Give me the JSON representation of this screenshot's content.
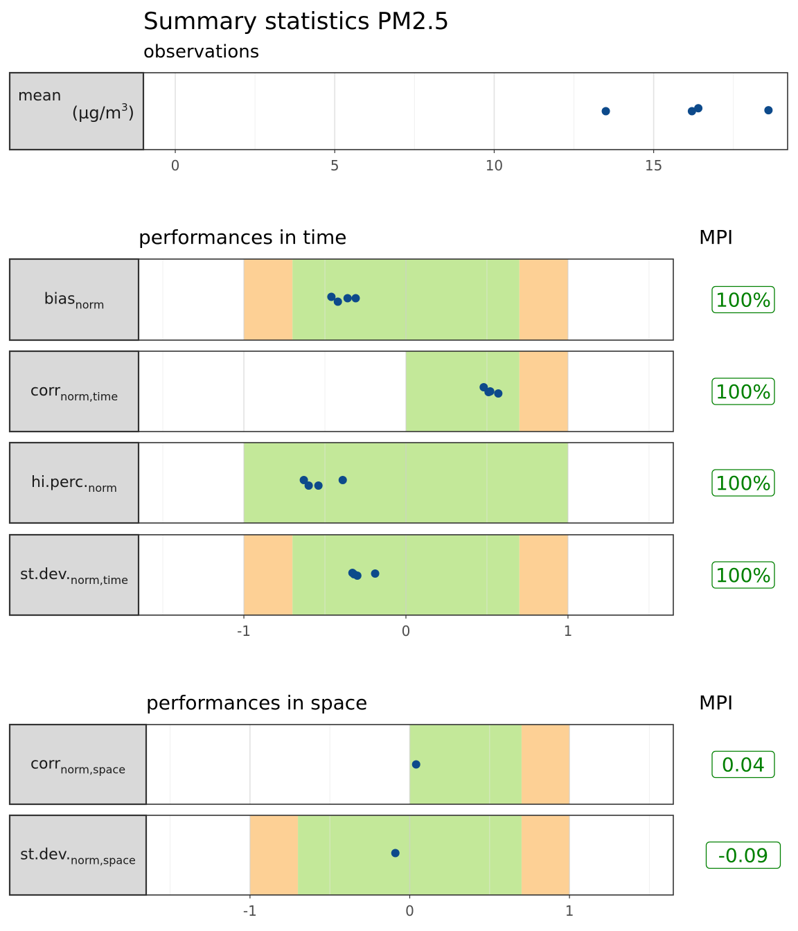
{
  "title": "Summary statistics PM2.5",
  "colors": {
    "point": "#0d4a8b",
    "green_band": "#c3e899",
    "orange_band": "#fdd095",
    "strip_fill": "#d9d9d9",
    "mpi_text": "#008000"
  },
  "chart_data": [
    {
      "type": "scatter",
      "subtitle": "observations",
      "xlim": [
        -1.0,
        19.2
      ],
      "x_ticks": [
        0,
        5,
        10,
        15
      ],
      "grid": true,
      "facets": [
        {
          "label": "mean",
          "unit": "(µg/m",
          "unit_sup": "3",
          "unit_end": ")",
          "points": [
            [
              13.5,
              0.0
            ],
            [
              16.2,
              0.0
            ],
            [
              16.4,
              0.3
            ],
            [
              18.6,
              0.1
            ]
          ]
        }
      ]
    },
    {
      "type": "scatter",
      "title": "performances in time",
      "mpi_header": "MPI",
      "xlim": [
        -1.65,
        1.65
      ],
      "x_ticks": [
        -1,
        0,
        1
      ],
      "grid": true,
      "facets": [
        {
          "label": "bias",
          "sub": "norm",
          "mpi": "100%",
          "green": [
            -0.7,
            0.7
          ],
          "orange": [
            [
              -1,
              -0.7
            ],
            [
              0.7,
              1
            ]
          ],
          "points": [
            [
              -0.46,
              0.2
            ],
            [
              -0.42,
              -0.15
            ],
            [
              -0.36,
              0.1
            ],
            [
              -0.31,
              0.1
            ]
          ]
        },
        {
          "label": "corr",
          "sub": "norm,time",
          "mpi": "100%",
          "green": [
            0,
            0.7
          ],
          "orange": [
            [
              0.7,
              1
            ]
          ],
          "points": [
            [
              0.48,
              0.3
            ],
            [
              0.52,
              0.0
            ],
            [
              0.51,
              -0.05
            ],
            [
              0.57,
              -0.15
            ]
          ]
        },
        {
          "label": "hi.perc.",
          "sub": "norm",
          "mpi": "100%",
          "green": [
            -1,
            1
          ],
          "orange": [],
          "points": [
            [
              -0.63,
              0.2
            ],
            [
              -0.6,
              -0.2
            ],
            [
              -0.54,
              -0.2
            ],
            [
              -0.39,
              0.2
            ]
          ]
        },
        {
          "label": "st.dev.",
          "sub": "norm,time",
          "mpi": "100%",
          "green": [
            -0.7,
            0.7
          ],
          "orange": [
            [
              -1,
              -0.7
            ],
            [
              0.7,
              1
            ]
          ],
          "points": [
            [
              -0.33,
              0.15
            ],
            [
              -0.32,
              0.05
            ],
            [
              -0.3,
              -0.05
            ],
            [
              -0.19,
              0.1
            ]
          ]
        }
      ]
    },
    {
      "type": "scatter",
      "title": "performances in space",
      "mpi_header": "MPI",
      "xlim": [
        -1.65,
        1.65
      ],
      "x_ticks": [
        -1,
        0,
        1
      ],
      "grid": true,
      "facets": [
        {
          "label": "corr",
          "sub": "norm,space",
          "mpi": "0.04",
          "green": [
            0,
            0.7
          ],
          "orange": [
            [
              0.7,
              1
            ]
          ],
          "points": [
            [
              0.04,
              0.0
            ]
          ]
        },
        {
          "label": "st.dev.",
          "sub": "norm,space",
          "mpi": "-0.09",
          "green": [
            -0.7,
            0.7
          ],
          "orange": [
            [
              -1,
              -0.7
            ],
            [
              0.7,
              1
            ]
          ],
          "points": [
            [
              -0.09,
              0.15
            ]
          ]
        }
      ]
    }
  ]
}
